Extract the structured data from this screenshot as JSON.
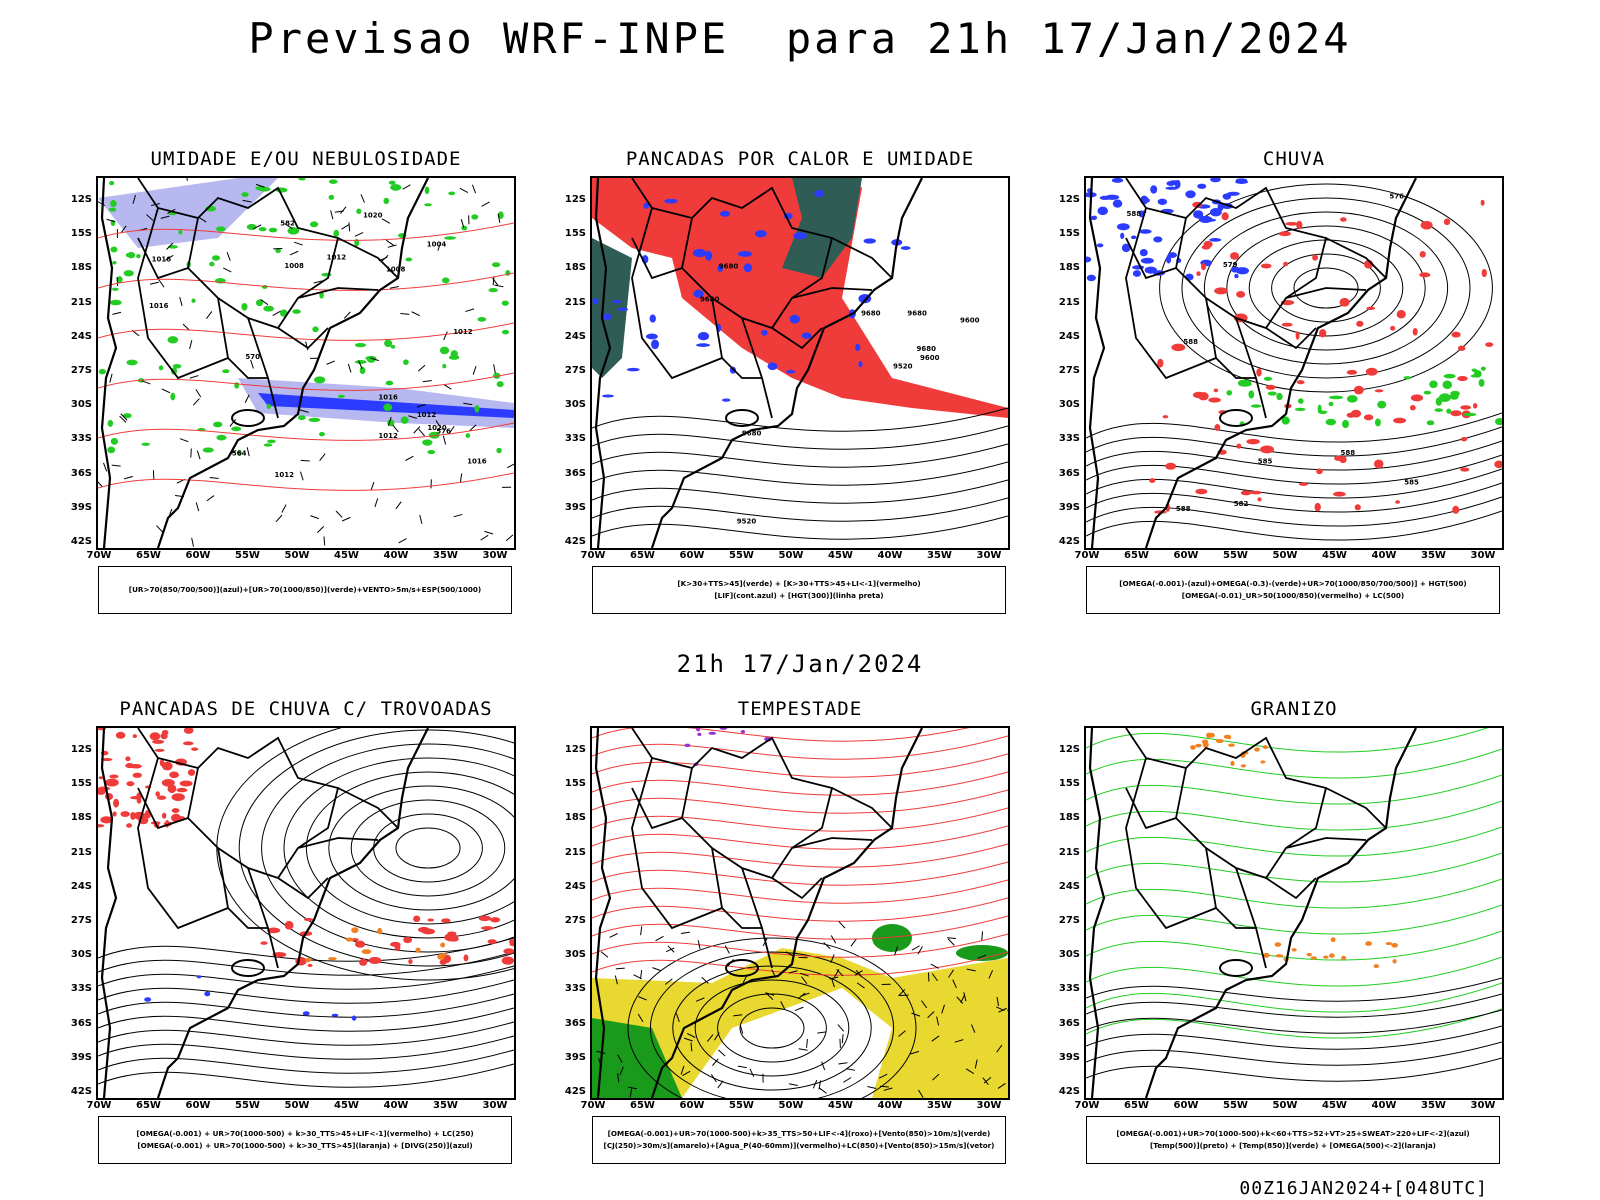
{
  "header": {
    "title": "Previsao WRF-INPE  para 21h 17/Jan/2024",
    "subtitle": "21h 17/Jan/2024",
    "footer": "00Z16JAN2024+[048UTC]"
  },
  "axes": {
    "lat_labels": [
      "12S",
      "15S",
      "18S",
      "21S",
      "24S",
      "27S",
      "30S",
      "33S",
      "36S",
      "39S",
      "42S"
    ],
    "lon_labels": [
      "70W",
      "65W",
      "60W",
      "55W",
      "50W",
      "45W",
      "40W",
      "35W",
      "30W"
    ]
  },
  "colors": {
    "red": "#f03b3b",
    "green": "#22cc22",
    "blue": "#2b3bff",
    "lightblue": "#b8b8f0",
    "darkgreen": "#2f5d55",
    "yellow": "#e8d830",
    "darkgreen_fill": "#1a9a1a",
    "orange": "#f08020",
    "purple": "#9933cc"
  },
  "panels": [
    {
      "title": "UMIDADE E/OU NEBULOSIDADE",
      "legend": [
        "[UR>70(850/700/500)](azul)+[UR>70(1000/850)](verde)+VENTO>5m/s+ESP(500/1000)"
      ],
      "contour_labels": [
        "1012",
        "1012",
        "1016",
        "1020",
        "1016",
        "1008",
        "1012",
        "1012",
        "1016",
        "1020",
        "1012",
        "1016",
        "1008",
        "1004",
        "576",
        "570",
        "564",
        "582"
      ]
    },
    {
      "title": "PANCADAS POR CALOR E UMIDADE",
      "legend": [
        "[K>30+TTS>45](verde) + [K>30+TTS>45+LI<-1](vermelho)",
        "[LIF](cont.azul) + [HGT(300)](linha preta)"
      ],
      "contour_labels": [
        "9680",
        "9680",
        "9680",
        "9680",
        "9680",
        "9680",
        "9600",
        "9600",
        "9520",
        "9520"
      ]
    },
    {
      "title": "CHUVA",
      "legend": [
        "[OMEGA(-0.001)-(azul)+OMEGA(-0.3)-(verde)+UR>70(1000/850/700/500)] + HGT(500)",
        "[OMEGA(-0.01)_UR>50(1000/850)(vermelho) + LC(500)"
      ],
      "contour_labels": [
        "588",
        "588",
        "588",
        "588",
        "585",
        "582",
        "579",
        "576",
        "585"
      ]
    },
    {
      "title": "PANCADAS DE CHUVA C/ TROVOADAS",
      "legend": [
        "[OMEGA(-0.001) + UR>70(1000-500) + k>30_TTS>45+LIF<-1](vermelho) + LC(250)",
        "[OMEGA(-0.001) + UR>70(1000-500) + k>30_TTS>45](laranja) + [DIVG(250)](azul)"
      ],
      "contour_labels": []
    },
    {
      "title": "TEMPESTADE",
      "legend": [
        "[OMEGA(-0.001)+UR>70(1000-500)+k>35_TTS>50+LIF<-4](roxo)+[Vento(850)>10m/s](verde)",
        "[CJ(250)>30m/s](amarelo)+[Agua_P(40-60mm)](vermelho)+LC(850)+[Vento(850)>15m/s](vetor)"
      ],
      "contour_labels": []
    },
    {
      "title": "GRANIZO",
      "legend": [
        "[OMEGA(-0.001)+UR>70(1000-500)+k<60+TTS>52+VT>25+SWEAT>220+LIF<-2](azul)",
        "[Temp(500)](preto) + [Temp(850)](verde) + [OMEGA(500)<-2](laranja)"
      ],
      "contour_labels": []
    }
  ]
}
